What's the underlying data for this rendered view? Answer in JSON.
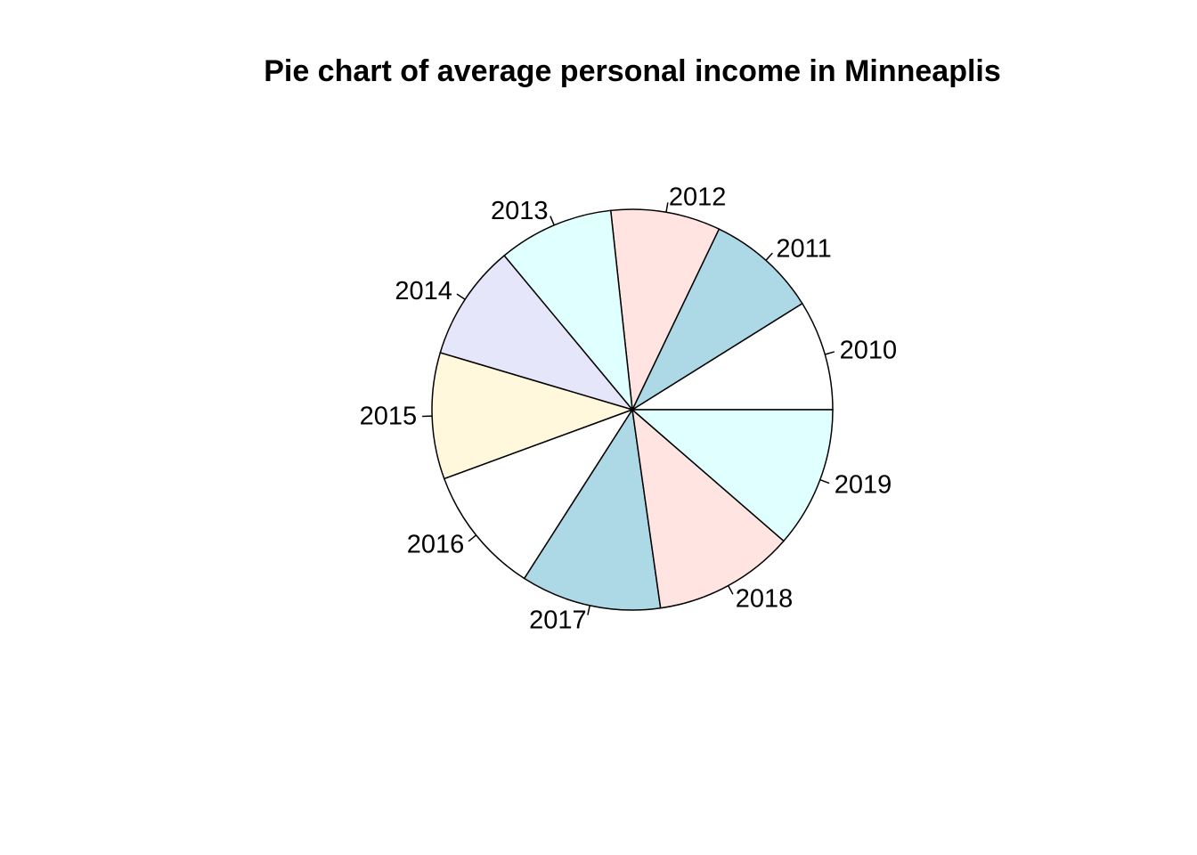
{
  "chart_data": {
    "type": "pie",
    "title": "Pie chart of average personal income in Minneaplis",
    "categories": [
      "2010",
      "2011",
      "2012",
      "2013",
      "2014",
      "2015",
      "2016",
      "2017",
      "2018",
      "2019"
    ],
    "values": [
      0.0889,
      0.0899,
      0.0884,
      0.0932,
      0.0937,
      0.1019,
      0.1034,
      0.1131,
      0.1138,
      0.1137
    ],
    "colors": [
      "#FFFFFF",
      "#ADD8E6",
      "#FFE4E1",
      "#E0FFFF",
      "#E6E6FA",
      "#FFF8DC",
      "#FFFFFF",
      "#ADD8E6",
      "#FFE4E1",
      "#E0FFFF"
    ],
    "start_angle_deg": 0,
    "direction": "counterclockwise",
    "legend": "none"
  }
}
